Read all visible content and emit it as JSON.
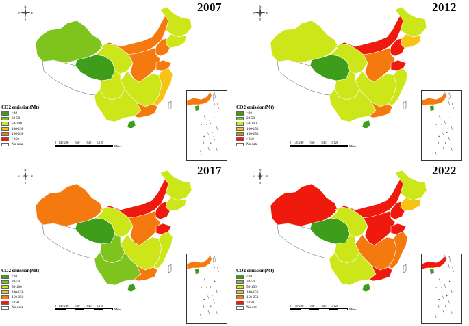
{
  "legend": {
    "title": "CO2 emission(Mt)",
    "classes": [
      {
        "label": "<20",
        "color": "#3e9e1c"
      },
      {
        "label": "20-50",
        "color": "#7fc31f"
      },
      {
        "label": "50-100",
        "color": "#cce61a"
      },
      {
        "label": "100-150",
        "color": "#f6c414"
      },
      {
        "label": "150-250",
        "color": "#f47a10"
      },
      {
        "label": ">250",
        "color": "#ef1a0d"
      },
      {
        "label": "No data",
        "color": "#ffffff"
      }
    ]
  },
  "compass": {
    "north": "N",
    "south": "S",
    "west": "W",
    "east": "E"
  },
  "scalebar": {
    "ticks": [
      "0",
      "140",
      "280",
      "560",
      "840",
      "1,120"
    ],
    "unit": "Miles"
  },
  "panels": [
    {
      "year": "2007",
      "regions": {
        "xinjiang": "20-50",
        "tibet": "no-data",
        "qinghai": "<20",
        "gansu": "50-100",
        "innermongolia": "150-250",
        "heilongjiang": "50-100",
        "jilin": "50-100",
        "liaoning": "150-250",
        "north-china": "150-250",
        "shandong": "150-250",
        "central": "50-100",
        "sichuan": "50-100",
        "southwest": "50-100",
        "guangdong": "150-250",
        "coast-east": "100-150",
        "hainan": "<20"
      }
    },
    {
      "year": "2012",
      "regions": {
        "xinjiang": "50-100",
        "tibet": "no-data",
        "qinghai": "<20",
        "gansu": "50-100",
        "innermongolia": ">250",
        "heilongjiang": "50-100",
        "jilin": "100-150",
        "liaoning": ">250",
        "north-china": "150-250",
        "shandong": ">250",
        "central": "50-100",
        "sichuan": "50-100",
        "southwest": "50-100",
        "guangdong": "150-250",
        "coast-east": "50-100",
        "hainan": "<20"
      }
    },
    {
      "year": "2017",
      "regions": {
        "xinjiang": "150-250",
        "tibet": "no-data",
        "qinghai": "<20",
        "gansu": "50-100",
        "innermongolia": ">250",
        "heilongjiang": "50-100",
        "jilin": "50-100",
        "liaoning": ">250",
        "north-china": "150-250",
        "shandong": ">250",
        "central": "50-100",
        "sichuan": "20-50",
        "southwest": "20-50",
        "guangdong": "150-250",
        "coast-east": "50-100",
        "hainan": "<20"
      }
    },
    {
      "year": "2022",
      "regions": {
        "xinjiang": ">250",
        "tibet": "no-data",
        "qinghai": "<20",
        "gansu": "50-100",
        "innermongolia": ">250",
        "heilongjiang": "50-100",
        "jilin": "100-150",
        "liaoning": ">250",
        "north-china": ">250",
        "shandong": ">250",
        "central": "150-250",
        "sichuan": "50-100",
        "southwest": "50-100",
        "guangdong": ">250",
        "coast-east": "150-250",
        "hainan": "<20"
      }
    }
  ]
}
